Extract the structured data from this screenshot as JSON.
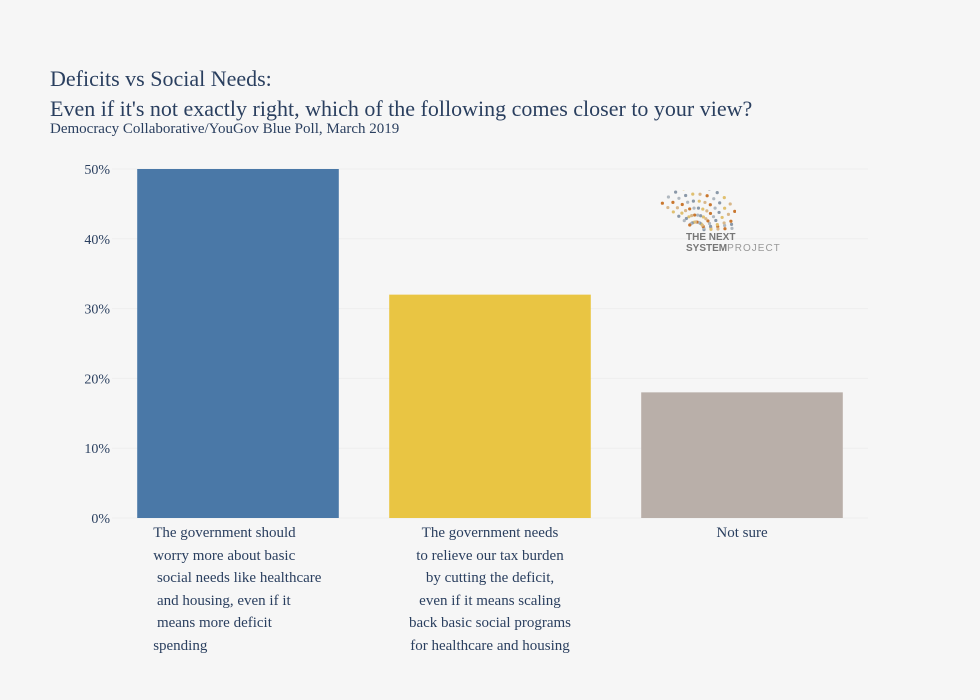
{
  "chart_data": {
    "type": "bar",
    "title_line1": "Deficits vs Social Needs:",
    "title_line2": "Even if it's not exactly right, which of the following comes closer to your view?",
    "subtitle": "Democracy Collaborative/YouGov Blue Poll, March 2019",
    "categories": [
      "The government should\nworry more about basic\n social needs like healthcare\n and housing, even if it\n means more deficit\nspending",
      "The government needs\nto relieve our tax burden\nby cutting the deficit,\neven if it means scaling\nback basic social programs\nfor healthcare and housing",
      "Not sure"
    ],
    "values": [
      50,
      32,
      18
    ],
    "colors": [
      "#4a78a7",
      "#e9c543",
      "#b9afa9"
    ],
    "ylim": [
      0,
      50
    ],
    "yticks": [
      0,
      10,
      20,
      30,
      40,
      50
    ],
    "ytick_labels": [
      "0%",
      "10%",
      "20%",
      "30%",
      "40%",
      "50%"
    ],
    "grid": true,
    "xlabel": "",
    "ylabel": ""
  },
  "logo": {
    "text_bold": "THE NEXT SYSTEM",
    "text_light": "PROJECT"
  }
}
